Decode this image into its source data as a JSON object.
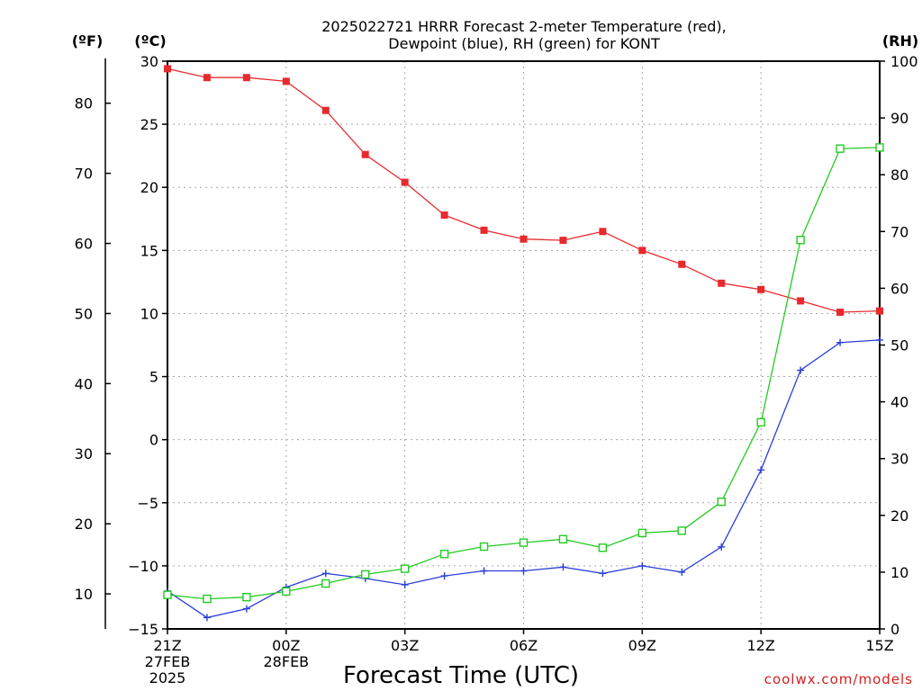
{
  "chart_data": {
    "type": "line",
    "title": [
      "2025022721 HRRR Forecast 2-meter Temperature (red),",
      "Dewpoint (blue), RH (green) for KONT"
    ],
    "xlabel": "Forecast Time (UTC)",
    "credit": "coolwx.com/models",
    "units": {
      "fahrenheit": "(ºF)",
      "celsius": "(ºC)",
      "rh": "(RH)"
    },
    "x": [
      0,
      1,
      2,
      3,
      4,
      5,
      6,
      7,
      8,
      9,
      10,
      11,
      12,
      13,
      14,
      15,
      16,
      17,
      18
    ],
    "x_ticks": [
      {
        "x": 0,
        "lines": [
          "21Z",
          "27FEB",
          "2025"
        ]
      },
      {
        "x": 3,
        "lines": [
          "00Z",
          "28FEB"
        ]
      },
      {
        "x": 6,
        "lines": [
          "03Z"
        ]
      },
      {
        "x": 9,
        "lines": [
          "06Z"
        ]
      },
      {
        "x": 12,
        "lines": [
          "09Z"
        ]
      },
      {
        "x": 15,
        "lines": [
          "12Z"
        ]
      },
      {
        "x": 18,
        "lines": [
          "15Z"
        ]
      }
    ],
    "xlim": [
      0,
      18
    ],
    "celsius_axis": {
      "range": [
        -15,
        30
      ],
      "ticks": [
        -15,
        -10,
        -5,
        0,
        5,
        10,
        15,
        20,
        25,
        30
      ]
    },
    "fahrenheit_axis": {
      "ticks": [
        10,
        20,
        30,
        40,
        50,
        60,
        70,
        80
      ]
    },
    "rh_axis": {
      "range": [
        0,
        100
      ],
      "ticks": [
        0,
        10,
        20,
        30,
        40,
        50,
        60,
        70,
        80,
        90,
        100
      ]
    },
    "grid": true,
    "series": [
      {
        "color": "#e8292e",
        "marker": "filled-square",
        "axis": "celsius",
        "values": [
          29.4,
          28.7,
          28.7,
          28.4,
          26.1,
          22.6,
          20.4,
          17.8,
          16.6,
          15.9,
          15.8,
          16.5,
          15.0,
          13.9,
          12.4,
          11.9,
          11.0,
          10.1,
          10.2
        ]
      },
      {
        "color": "#2a3fd8",
        "marker": "plus",
        "axis": "celsius",
        "values": [
          -12.0,
          -14.1,
          -13.4,
          -11.7,
          -10.6,
          -11.0,
          -11.5,
          -10.8,
          -10.4,
          -10.4,
          -10.1,
          -10.6,
          -10.0,
          -10.5,
          -8.5,
          -2.4,
          5.5,
          7.7,
          7.9
        ]
      },
      {
        "color": "#22cc22",
        "marker": "open-square",
        "axis": "rh",
        "values": [
          6.0,
          5.3,
          5.6,
          6.6,
          8.0,
          9.6,
          10.6,
          13.2,
          14.5,
          15.2,
          15.8,
          14.3,
          16.9,
          17.3,
          22.4,
          36.4,
          68.5,
          84.6,
          84.8
        ]
      }
    ]
  }
}
